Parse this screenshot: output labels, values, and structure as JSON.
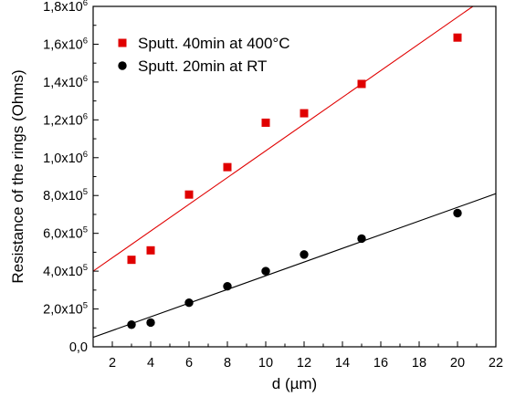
{
  "chart_data": {
    "type": "scatter",
    "xlabel": "d (µm)",
    "ylabel": "Resistance of the rings (Ohms)",
    "xlim": [
      1,
      22
    ],
    "ylim": [
      0,
      1800000
    ],
    "x_ticks": [
      2,
      4,
      6,
      8,
      10,
      12,
      14,
      16,
      18,
      20,
      22
    ],
    "x_tick_labels": [
      "2",
      "4",
      "6",
      "8",
      "10",
      "12",
      "14",
      "16",
      "18",
      "20",
      "22"
    ],
    "y_ticks": [
      0,
      200000,
      400000,
      600000,
      800000,
      1000000,
      1200000,
      1400000,
      1600000,
      1800000
    ],
    "y_tick_labels": [
      {
        "mant": "0,0",
        "exp": ""
      },
      {
        "mant": "2,0x10",
        "exp": "5"
      },
      {
        "mant": "4,0x10",
        "exp": "5"
      },
      {
        "mant": "6,0x10",
        "exp": "5"
      },
      {
        "mant": "8,0x10",
        "exp": "5"
      },
      {
        "mant": "1,0x10",
        "exp": "6"
      },
      {
        "mant": "1,2x10",
        "exp": "6"
      },
      {
        "mant": "1,4x10",
        "exp": "6"
      },
      {
        "mant": "1,6x10",
        "exp": "6"
      },
      {
        "mant": "1,8x10",
        "exp": "6"
      }
    ],
    "grid": false,
    "legend_position": "top-left",
    "series": [
      {
        "name": "Sputt. 40min at 400°C",
        "marker": "square",
        "color": "#e00000",
        "x": [
          3,
          4,
          6,
          8,
          10,
          12,
          15,
          20
        ],
        "y": [
          460000,
          510000,
          805000,
          950000,
          1185000,
          1235000,
          1390000,
          1635000
        ],
        "fit": {
          "x": [
            1,
            20.8
          ],
          "y": [
            400000,
            1800000
          ]
        }
      },
      {
        "name": "Sputt. 20min at RT",
        "marker": "circle",
        "color": "#000000",
        "x": [
          3,
          4,
          6,
          8,
          10,
          12,
          15,
          20
        ],
        "y": [
          117000,
          128000,
          233000,
          320000,
          400000,
          488000,
          572000,
          707000
        ],
        "fit": {
          "x": [
            1,
            22
          ],
          "y": [
            50000,
            810000
          ]
        }
      }
    ]
  }
}
